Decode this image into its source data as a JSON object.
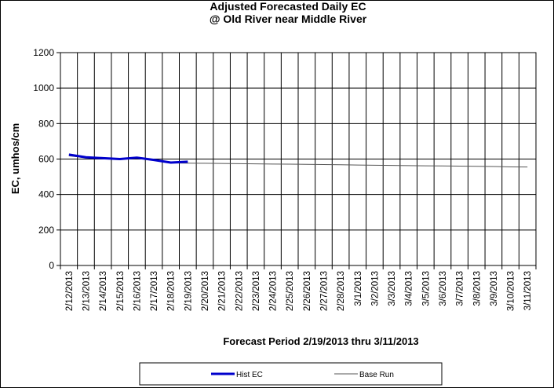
{
  "chart_data": {
    "type": "line",
    "title_line1": "Adjusted Forecasted Daily EC",
    "title_line2": "@ Old River near Middle River",
    "xlabel": "Forecast Period  2/19/2013 thru 3/11/2013",
    "ylabel": "EC, umhos/cm",
    "ylim": [
      0,
      1200
    ],
    "yticks": [
      "0",
      "200",
      "400",
      "600",
      "800",
      "1000",
      "1200"
    ],
    "categories": [
      "2/12/2013",
      "2/13/2013",
      "2/14/2013",
      "2/15/2013",
      "2/16/2013",
      "2/17/2013",
      "2/18/2013",
      "2/19/2013",
      "2/20/2013",
      "2/21/2013",
      "2/22/2013",
      "2/23/2013",
      "2/24/2013",
      "2/25/2013",
      "2/26/2013",
      "2/27/2013",
      "2/28/2013",
      "3/1/2013",
      "3/2/2013",
      "3/3/2013",
      "3/4/2013",
      "3/5/2013",
      "3/6/2013",
      "3/7/2013",
      "3/8/2013",
      "3/9/2013",
      "3/10/2013",
      "3/11/2013"
    ],
    "grid": true,
    "legend_position": "bottom",
    "series": [
      {
        "name": "Hist EC",
        "color": "#0000cc",
        "values": [
          625,
          610,
          605,
          600,
          608,
          595,
          580,
          585,
          null,
          null,
          null,
          null,
          null,
          null,
          null,
          null,
          null,
          null,
          null,
          null,
          null,
          null,
          null,
          null,
          null,
          null,
          null,
          null
        ]
      },
      {
        "name": "Base Run",
        "color": "#555555",
        "values": [
          618,
          607,
          603,
          600,
          605,
          592,
          578,
          577,
          576,
          575,
          574,
          573,
          572,
          571,
          570,
          569,
          568,
          566,
          565,
          564,
          563,
          562,
          561,
          560,
          559,
          558,
          556,
          555
        ]
      }
    ]
  }
}
